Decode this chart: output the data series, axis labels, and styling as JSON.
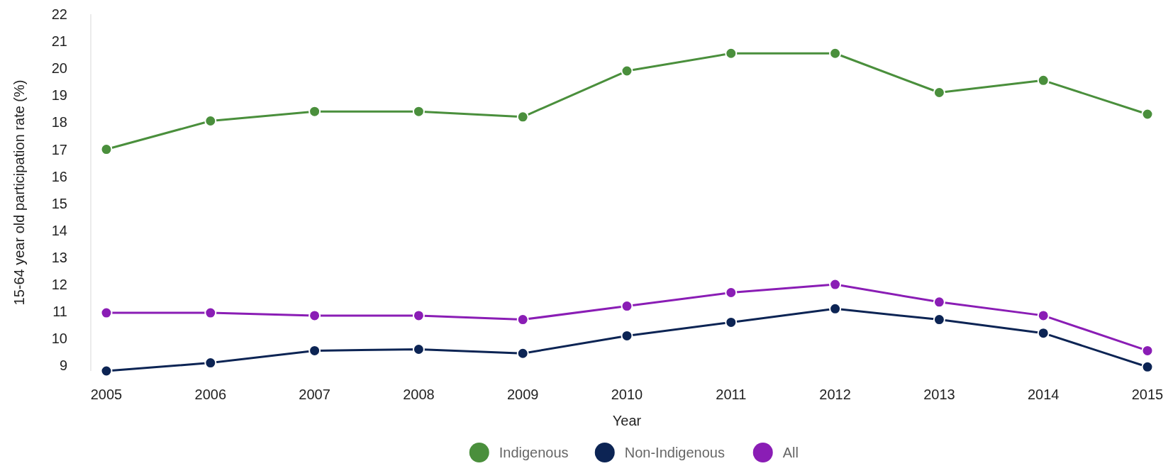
{
  "chart_data": {
    "type": "line",
    "xlabel": "Year",
    "ylabel": "15-64 year old participation rate (%)",
    "x": [
      2005,
      2006,
      2007,
      2008,
      2009,
      2010,
      2011,
      2012,
      2013,
      2014,
      2015
    ],
    "series": [
      {
        "name": "Indigenous",
        "color": "#4a8f3c",
        "values": [
          17.0,
          18.05,
          18.4,
          18.4,
          18.2,
          19.9,
          20.55,
          20.55,
          19.1,
          19.55,
          18.3
        ]
      },
      {
        "name": "Non-Indigenous",
        "color": "#0c2454",
        "values": [
          8.8,
          9.1,
          9.55,
          9.6,
          9.45,
          10.1,
          10.6,
          11.1,
          10.7,
          10.2,
          8.95
        ]
      },
      {
        "name": "All",
        "color": "#8a1db5",
        "values": [
          10.95,
          10.95,
          10.85,
          10.85,
          10.7,
          11.2,
          11.7,
          12.0,
          11.35,
          10.85,
          9.55
        ]
      }
    ],
    "xlim": [
      2005,
      2015
    ],
    "xticks": [
      2005,
      2006,
      2007,
      2008,
      2009,
      2010,
      2011,
      2012,
      2013,
      2014,
      2015
    ],
    "ylim": [
      8.8,
      22
    ],
    "yticks": [
      9,
      10,
      11,
      12,
      13,
      14,
      15,
      16,
      17,
      18,
      19,
      20,
      21,
      22
    ],
    "grid": false,
    "legend": "bottom",
    "marker": "circle",
    "line_style": "solid"
  }
}
